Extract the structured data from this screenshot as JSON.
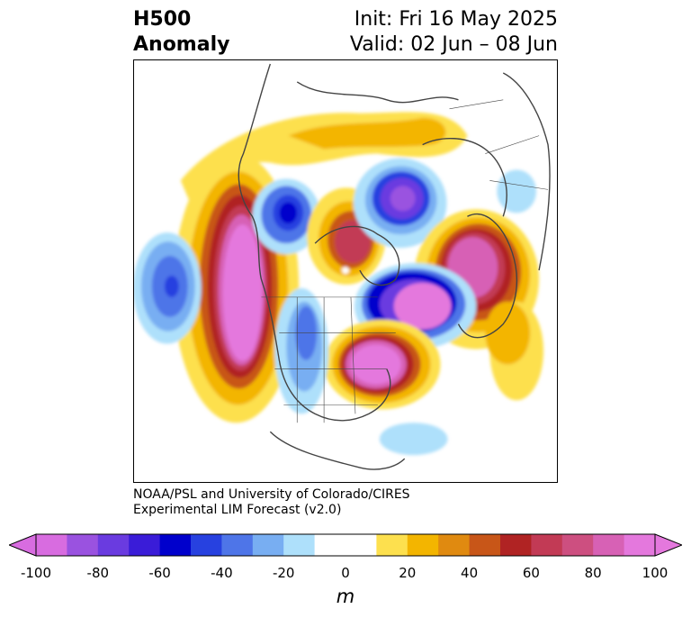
{
  "header": {
    "title_line1": "H500",
    "title_line2": "Anomaly",
    "init": "Init: Fri 16 May 2025",
    "valid": "Valid: 02 Jun – 08 Jun"
  },
  "credit": {
    "line1": "NOAA/PSL and University of Colorado/CIRES",
    "line2": "Experimental LIM Forecast (v2.0)"
  },
  "colorbar": {
    "units": "m",
    "ticks": [
      "-100",
      "-80",
      "-60",
      "-40",
      "-20",
      "0",
      "20",
      "40",
      "60",
      "80",
      "100"
    ],
    "colors": [
      "#d86ce0",
      "#9a52e0",
      "#6a3be0",
      "#3a1cd8",
      "#0000cc",
      "#2741e0",
      "#4e75e8",
      "#78aef2",
      "#aee0fb",
      "#ffffff",
      "#ffffff",
      "#fde04e",
      "#f3b500",
      "#e08a10",
      "#c85618",
      "#b02323",
      "#c23a55",
      "#cd4f80",
      "#d761b5",
      "#e478dd"
    ]
  }
}
